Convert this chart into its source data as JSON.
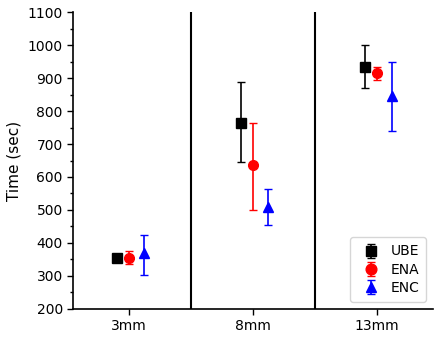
{
  "groups": [
    "3mm",
    "8mm",
    "13mm"
  ],
  "series_order": [
    "UBE",
    "ENA",
    "ENC"
  ],
  "series": {
    "UBE": {
      "color": "black",
      "marker": "s",
      "values": [
        355,
        765,
        935
      ],
      "yerr_low": [
        0,
        120,
        65
      ],
      "yerr_high": [
        0,
        125,
        65
      ]
    },
    "ENA": {
      "color": "red",
      "marker": "o",
      "values": [
        355,
        635,
        915
      ],
      "yerr_low": [
        20,
        135,
        20
      ],
      "yerr_high": [
        20,
        130,
        20
      ]
    },
    "ENC": {
      "color": "blue",
      "marker": "^",
      "values": [
        368,
        510,
        845
      ],
      "yerr_low": [
        65,
        55,
        105
      ],
      "yerr_high": [
        55,
        55,
        105
      ]
    }
  },
  "ylabel": "Time (sec)",
  "ylim": [
    200,
    1100
  ],
  "yticks": [
    200,
    300,
    400,
    500,
    600,
    700,
    800,
    900,
    1000,
    1100
  ],
  "group_positions": [
    1,
    2,
    3
  ],
  "x_offsets": {
    "UBE": -0.1,
    "ENA": 0.0,
    "ENC": 0.12
  },
  "vline_positions": [
    1.5,
    2.5
  ],
  "markersize": 7,
  "capsize": 3,
  "elinewidth": 1.2,
  "legend_loc": "lower right",
  "legend_fontsize": 10,
  "tick_labelsize": 10,
  "ylabel_fontsize": 11
}
